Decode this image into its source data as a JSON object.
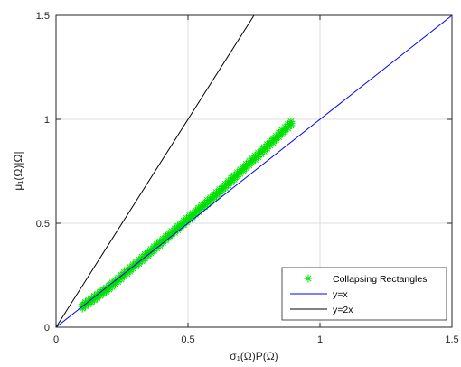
{
  "chart_data": {
    "type": "scatter",
    "xlim": [
      0,
      1.5
    ],
    "ylim": [
      0,
      1.5
    ],
    "xticks": [
      0,
      0.5,
      1,
      1.5
    ],
    "yticks": [
      0,
      0.5,
      1,
      1.5
    ],
    "xtick_labels": [
      "0",
      "0.5",
      "1",
      "1.5"
    ],
    "ytick_labels": [
      "0",
      "0.5",
      "1",
      "1.5"
    ],
    "xlabel": "σ₁(Ω)P(Ω)",
    "ylabel": "μ₁(Ω)|Ω|",
    "grid": true,
    "legend_position": "bottom-right",
    "series": [
      {
        "name": "Collapsing Rectangles",
        "kind": "markers",
        "marker": "asterisk",
        "color": "#00e000",
        "x_range": [
          0.1,
          0.89
        ],
        "points": [
          [
            0.1,
            0.1
          ],
          [
            0.2,
            0.19
          ],
          [
            0.3,
            0.3
          ],
          [
            0.4,
            0.41
          ],
          [
            0.5,
            0.52
          ],
          [
            0.6,
            0.63
          ],
          [
            0.7,
            0.75
          ],
          [
            0.8,
            0.87
          ],
          [
            0.89,
            0.98
          ]
        ]
      },
      {
        "name": "y=x",
        "kind": "line",
        "color": "#0000ff",
        "x": [
          0,
          1.5
        ],
        "y": [
          0,
          1.5
        ]
      },
      {
        "name": "y=2x",
        "kind": "line",
        "color": "#000000",
        "x": [
          0,
          0.75
        ],
        "y": [
          0,
          1.5
        ]
      }
    ]
  }
}
